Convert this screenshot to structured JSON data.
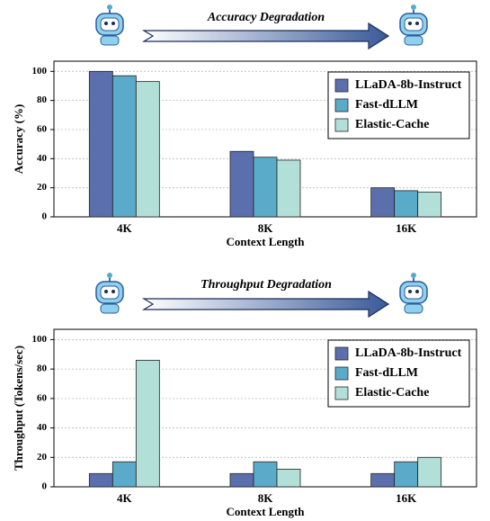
{
  "chart_data": [
    {
      "type": "bar",
      "annotation": "Accuracy Degradation",
      "ylabel": "Accuracy (%)",
      "xlabel": "Context Length",
      "categories": [
        "4K",
        "8K",
        "16K"
      ],
      "series": [
        {
          "name": "LLaDA-8b-Instruct",
          "color": "#5b6fad",
          "values": [
            100,
            45,
            20
          ]
        },
        {
          "name": "Fast-dLLM",
          "color": "#5aabc9",
          "values": [
            97,
            41,
            18
          ]
        },
        {
          "name": "Elastic-Cache",
          "color": "#b3dfd9",
          "values": [
            93,
            39,
            17
          ]
        }
      ],
      "ylim": [
        0,
        107
      ],
      "yticks": [
        0,
        20,
        40,
        60,
        80,
        100
      ],
      "grid": true,
      "legend": "upper right"
    },
    {
      "type": "bar",
      "annotation": "Throughput Degradation",
      "ylabel": "Throughput (Tokens/sec)",
      "xlabel": "Context Length",
      "categories": [
        "4K",
        "8K",
        "16K"
      ],
      "series": [
        {
          "name": "LLaDA-8b-Instruct",
          "color": "#5b6fad",
          "values": [
            9,
            9,
            9
          ]
        },
        {
          "name": "Fast-dLLM",
          "color": "#5aabc9",
          "values": [
            17,
            17,
            17
          ]
        },
        {
          "name": "Elastic-Cache",
          "color": "#b3dfd9",
          "values": [
            86,
            12,
            20
          ]
        }
      ],
      "ylim": [
        0,
        107
      ],
      "yticks": [
        0,
        20,
        40,
        60,
        80,
        100
      ],
      "grid": true,
      "legend": "upper right"
    }
  ]
}
